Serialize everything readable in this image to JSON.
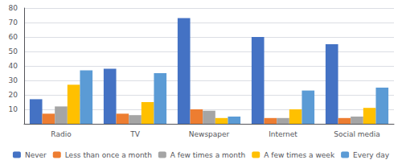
{
  "chart_data": {
    "type": "bar",
    "categories": [
      "Radio",
      "TV",
      "Newspaper",
      "Internet",
      "Social media"
    ],
    "series": [
      {
        "name": "Never",
        "color": "#4472C4",
        "values": [
          17,
          38,
          73,
          60,
          55
        ]
      },
      {
        "name": "Less than once a month",
        "color": "#ED7D31",
        "values": [
          7,
          7,
          10,
          4,
          4
        ]
      },
      {
        "name": "A few times a month",
        "color": "#A5A5A5",
        "values": [
          12,
          6,
          9,
          4,
          5
        ]
      },
      {
        "name": "A few times a week",
        "color": "#FFC000",
        "values": [
          27,
          15,
          4,
          10,
          11
        ]
      },
      {
        "name": "Every day",
        "color": "#5B9BD5",
        "values": [
          37,
          35,
          5,
          23,
          25
        ]
      }
    ],
    "ylim": [
      0,
      80
    ],
    "yticks": [
      10,
      20,
      30,
      40,
      50,
      60,
      70,
      80
    ],
    "grid": true,
    "legend": "bottom"
  }
}
